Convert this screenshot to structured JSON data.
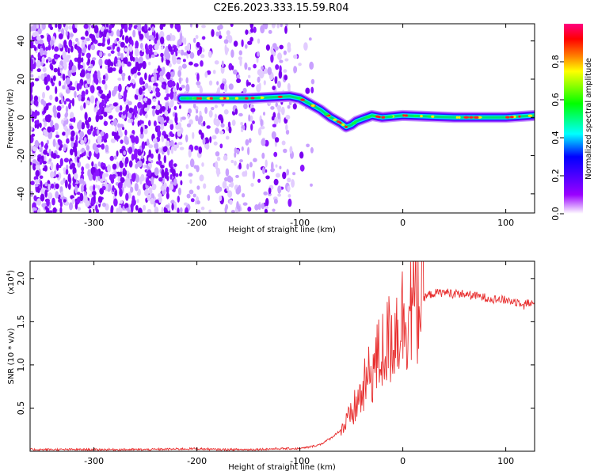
{
  "title": "C2E6.2023.333.15.59.R04",
  "chart_data": [
    {
      "type": "heatmap",
      "xlabel": "Height of straight line (km)",
      "ylabel": "Frequency (Hz)",
      "xlim": [
        -362,
        128
      ],
      "ylim": [
        -50,
        49
      ],
      "x_ticks": [
        -300,
        -200,
        -100,
        0,
        100
      ],
      "y_ticks": [
        -40,
        -20,
        0,
        20,
        40
      ],
      "colorbar": {
        "label": "Normalized spectral amplitude",
        "range": [
          0,
          1
        ],
        "ticks": [
          "0.0",
          "0.2",
          "0.4",
          "0.6",
          "0.8"
        ],
        "colors": [
          "#ffffff",
          "#9a00ff",
          "#0000ff",
          "#00ffff",
          "#00ff00",
          "#ffff00",
          "#ff8000",
          "#ff0000",
          "#ff0080"
        ]
      },
      "noise_region_km": [
        -362,
        -87
      ],
      "doppler_trace": {
        "x": [
          -215,
          -200,
          -150,
          -110,
          -100,
          -90,
          -80,
          -70,
          -60,
          -55,
          -50,
          -45,
          -40,
          -35,
          -30,
          -20,
          0,
          50,
          100,
          128
        ],
        "y": [
          10,
          10,
          10,
          11,
          10,
          7,
          4,
          0,
          -3,
          -5,
          -4,
          -2,
          -1,
          0,
          1,
          0,
          1,
          0,
          0,
          1
        ]
      }
    },
    {
      "type": "line",
      "xlabel": "Height of straight line (km)",
      "ylabel": "SNR (10 * v/v)",
      "y_multiplier": "(x10",
      "y_multiplier_exp": "4",
      "y_multiplier_close": ")",
      "xlim": [
        -362,
        128
      ],
      "ylim": [
        0,
        2.2
      ],
      "x_ticks": [
        -300,
        -200,
        -100,
        0,
        100
      ],
      "y_ticks": [
        "0.5",
        "1.0",
        "1.5",
        "2.0"
      ],
      "color": "#e83030",
      "series": [
        {
          "x": [
            -362,
            -300,
            -250,
            -200,
            -180,
            -150,
            -120,
            -100,
            -90,
            -80,
            -70,
            -60,
            -50,
            -45,
            -40,
            -35,
            -30,
            -25,
            -20,
            -15,
            -10,
            -5,
            0,
            10,
            20,
            30,
            40,
            50,
            60,
            70,
            80,
            90,
            100,
            110,
            120,
            128
          ],
          "y": [
            0.02,
            0.02,
            0.02,
            0.03,
            0.02,
            0.02,
            0.03,
            0.03,
            0.05,
            0.08,
            0.15,
            0.25,
            0.4,
            0.55,
            0.65,
            0.8,
            0.95,
            1.05,
            1.15,
            1.25,
            1.35,
            1.45,
            1.55,
            1.7,
            1.78,
            1.83,
            1.84,
            1.83,
            1.82,
            1.8,
            1.78,
            1.76,
            1.75,
            1.73,
            1.72,
            1.7
          ]
        }
      ]
    }
  ]
}
